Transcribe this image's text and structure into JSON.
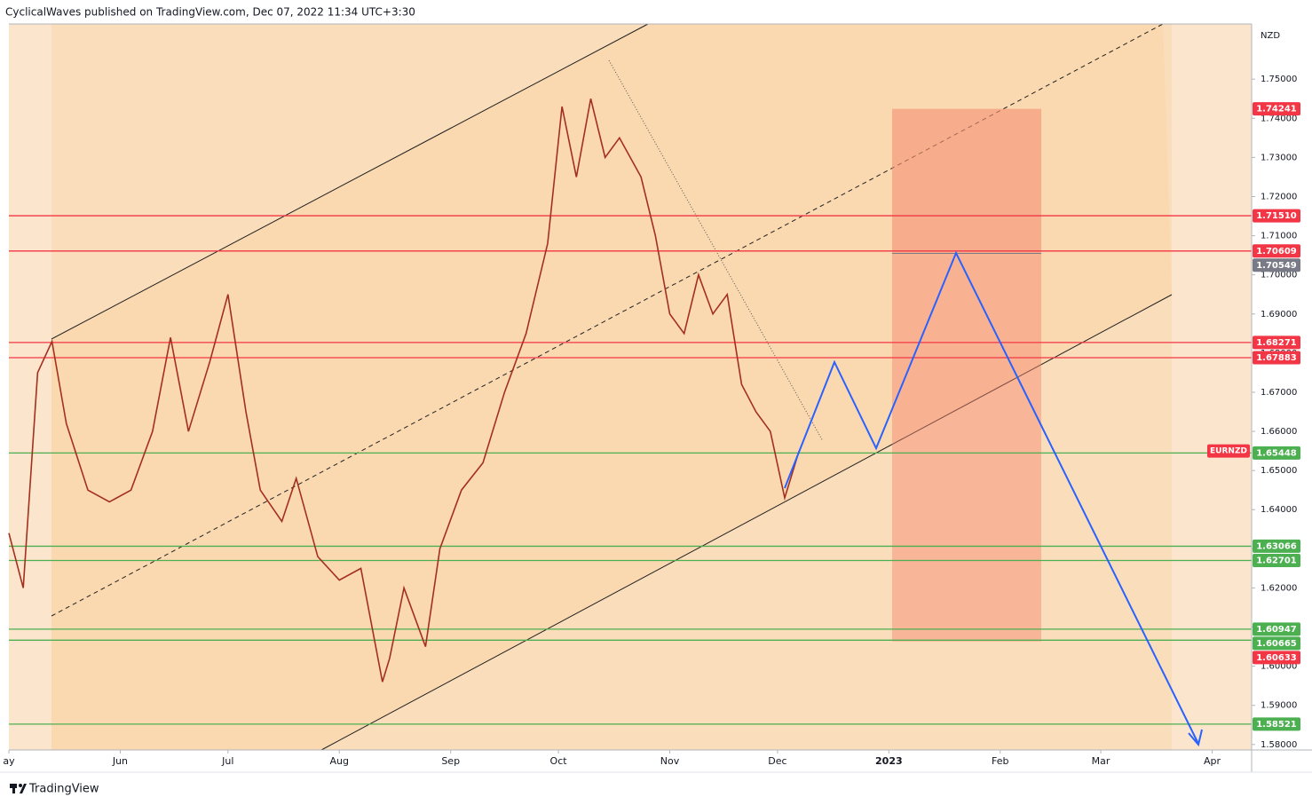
{
  "header": "CyclicalWaves published on TradingView.com, Dec 07, 2022 11:34 UTC+3:30",
  "footer": "TradingView",
  "chart_data": {
    "type": "line",
    "currency": "NZD",
    "xlim": [
      0,
      346
    ],
    "ylim": [
      1.5786,
      1.7641
    ],
    "xticks": [
      {
        "value": 0,
        "label": "ay"
      },
      {
        "value": 31,
        "label": "Jun"
      },
      {
        "value": 61,
        "label": "Jul"
      },
      {
        "value": 92,
        "label": "Aug"
      },
      {
        "value": 123,
        "label": "Sep"
      },
      {
        "value": 153,
        "label": "Oct"
      },
      {
        "value": 184,
        "label": "Nov"
      },
      {
        "value": 214,
        "label": "Dec"
      },
      {
        "value": 245,
        "label": "2023"
      },
      {
        "value": 276,
        "label": "Feb"
      },
      {
        "value": 304,
        "label": "Mar"
      },
      {
        "value": 335,
        "label": "Apr"
      }
    ],
    "yticks": [
      {
        "value": 1.58,
        "label": "1.58000"
      },
      {
        "value": 1.59,
        "label": "1.59000"
      },
      {
        "value": 1.6,
        "label": "1.60000"
      },
      {
        "value": 1.61,
        "label": "1.61000"
      },
      {
        "value": 1.62,
        "label": "1.62000"
      },
      {
        "value": 1.63,
        "label": "1.63000"
      },
      {
        "value": 1.64,
        "label": "1.64000"
      },
      {
        "value": 1.65,
        "label": "1.65000"
      },
      {
        "value": 1.66,
        "label": "1.66000"
      },
      {
        "value": 1.67,
        "label": "1.67000"
      },
      {
        "value": 1.68,
        "label": "1.68000"
      },
      {
        "value": 1.69,
        "label": "1.69000"
      },
      {
        "value": 1.7,
        "label": "1.70000"
      },
      {
        "value": 1.71,
        "label": "1.71000"
      },
      {
        "value": 1.72,
        "label": "1.72000"
      },
      {
        "value": 1.73,
        "label": "1.73000"
      },
      {
        "value": 1.74,
        "label": "1.74000"
      },
      {
        "value": 1.75,
        "label": "1.75000"
      }
    ],
    "x": [
      0,
      4,
      8,
      12,
      16,
      22,
      28,
      34,
      40,
      45,
      50,
      56,
      61,
      66,
      70,
      76,
      80,
      86,
      92,
      98,
      104,
      106,
      110,
      116,
      120,
      126,
      132,
      138,
      144,
      150,
      154,
      158,
      162,
      166,
      170,
      176,
      180,
      184,
      188,
      192,
      196,
      200,
      204,
      208,
      212,
      216,
      220
    ],
    "series": [
      {
        "name": "EURNZD",
        "color": "#a3301f",
        "values": [
          1.634,
          1.62,
          1.675,
          1.683,
          1.662,
          1.645,
          1.642,
          1.645,
          1.66,
          1.684,
          1.66,
          1.678,
          1.695,
          1.665,
          1.645,
          1.637,
          1.648,
          1.628,
          1.622,
          1.625,
          1.596,
          1.602,
          1.62,
          1.605,
          1.63,
          1.645,
          1.652,
          1.67,
          1.685,
          1.708,
          1.743,
          1.725,
          1.745,
          1.73,
          1.735,
          1.725,
          1.71,
          1.69,
          1.685,
          1.7,
          1.69,
          1.695,
          1.672,
          1.665,
          1.66,
          1.643,
          1.655
        ]
      }
    ],
    "levels": [
      {
        "value": 1.7151,
        "label": "1.71510",
        "color": "#f23645"
      },
      {
        "value": 1.70609,
        "label": "1.70609",
        "color": "#f23645"
      },
      {
        "value": 1.68271,
        "label": "1.68271",
        "color": "#f23645"
      },
      {
        "value": 1.67883,
        "label": "1.67883",
        "color": "#f23645"
      },
      {
        "value": 1.65448,
        "label": "1.65448",
        "color": "#4caf50"
      },
      {
        "value": 1.63066,
        "label": "1.63066",
        "color": "#4caf50"
      },
      {
        "value": 1.62701,
        "label": "1.62701",
        "color": "#4caf50"
      },
      {
        "value": 1.60947,
        "label": "1.60947",
        "color": "#4caf50"
      },
      {
        "value": 1.60665,
        "label": "1.60665",
        "color": "#4caf50"
      },
      {
        "value": 1.58521,
        "label": "1.58521",
        "color": "#4caf50"
      }
    ],
    "box": [
      {
        "value": 1.74241,
        "label": "1.74241",
        "color": "#f23645"
      },
      {
        "value": 1.70549,
        "label": "1.70549",
        "color": "#787b86"
      },
      {
        "value": 1.60633,
        "label": "1.60633",
        "color": "#f23645"
      }
    ]
  }
}
